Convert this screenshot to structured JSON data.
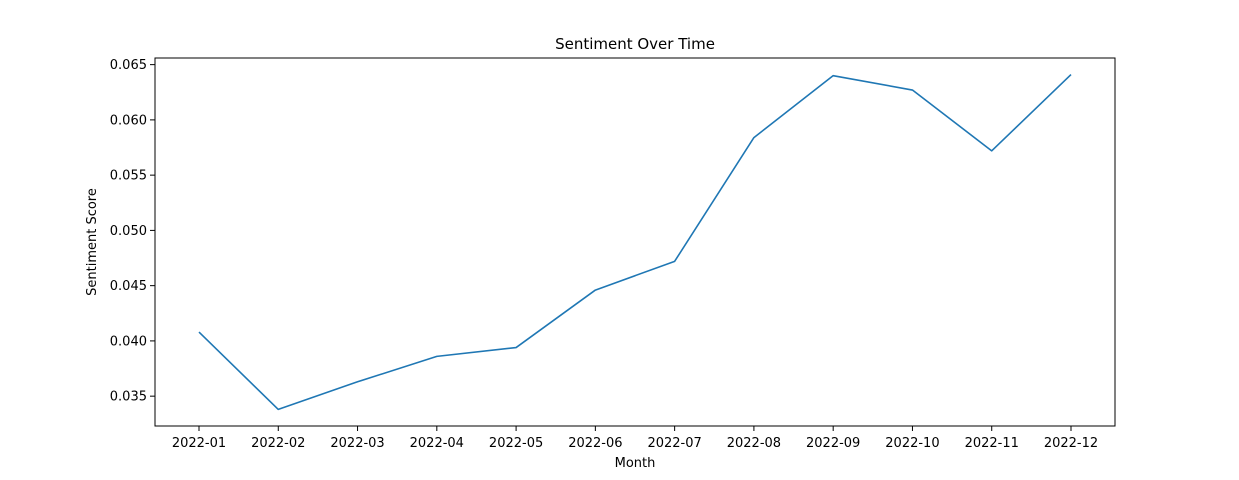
{
  "chart_data": {
    "type": "line",
    "title": "Sentiment Over Time",
    "xlabel": "Month",
    "ylabel": "Sentiment Score",
    "x": [
      "2022-01",
      "2022-02",
      "2022-03",
      "2022-04",
      "2022-05",
      "2022-06",
      "2022-07",
      "2022-08",
      "2022-09",
      "2022-10",
      "2022-11",
      "2022-12"
    ],
    "series": [
      {
        "values": [
          0.0408,
          0.0338,
          0.0363,
          0.0386,
          0.0394,
          0.0446,
          0.0472,
          0.0584,
          0.064,
          0.0627,
          0.0572,
          0.0641
        ],
        "color": "#1f77b4"
      }
    ],
    "yticks": [
      0.035,
      0.04,
      0.045,
      0.05,
      0.055,
      0.06,
      0.065
    ],
    "ytick_labels": [
      "0.035",
      "0.040",
      "0.045",
      "0.050",
      "0.055",
      "0.060",
      "0.065"
    ],
    "ylim": [
      0.0323,
      0.0656
    ],
    "grid": false,
    "legend": "none"
  }
}
